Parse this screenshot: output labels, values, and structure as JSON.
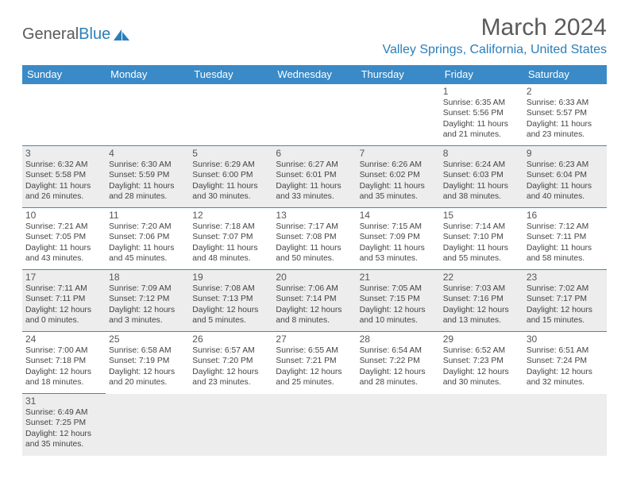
{
  "logo": {
    "text1": "General",
    "text2": "Blue"
  },
  "title": "March 2024",
  "location": "Valley Springs, California, United States",
  "weekday_headers": [
    "Sunday",
    "Monday",
    "Tuesday",
    "Wednesday",
    "Thursday",
    "Friday",
    "Saturday"
  ],
  "colors": {
    "header_bg": "#3a8ac7",
    "cell_shade": "#ededed",
    "accent": "#2a7fba"
  },
  "days": {
    "1": {
      "sunrise": "6:35 AM",
      "sunset": "5:56 PM",
      "daylight": "11 hours and 21 minutes."
    },
    "2": {
      "sunrise": "6:33 AM",
      "sunset": "5:57 PM",
      "daylight": "11 hours and 23 minutes."
    },
    "3": {
      "sunrise": "6:32 AM",
      "sunset": "5:58 PM",
      "daylight": "11 hours and 26 minutes."
    },
    "4": {
      "sunrise": "6:30 AM",
      "sunset": "5:59 PM",
      "daylight": "11 hours and 28 minutes."
    },
    "5": {
      "sunrise": "6:29 AM",
      "sunset": "6:00 PM",
      "daylight": "11 hours and 30 minutes."
    },
    "6": {
      "sunrise": "6:27 AM",
      "sunset": "6:01 PM",
      "daylight": "11 hours and 33 minutes."
    },
    "7": {
      "sunrise": "6:26 AM",
      "sunset": "6:02 PM",
      "daylight": "11 hours and 35 minutes."
    },
    "8": {
      "sunrise": "6:24 AM",
      "sunset": "6:03 PM",
      "daylight": "11 hours and 38 minutes."
    },
    "9": {
      "sunrise": "6:23 AM",
      "sunset": "6:04 PM",
      "daylight": "11 hours and 40 minutes."
    },
    "10": {
      "sunrise": "7:21 AM",
      "sunset": "7:05 PM",
      "daylight": "11 hours and 43 minutes."
    },
    "11": {
      "sunrise": "7:20 AM",
      "sunset": "7:06 PM",
      "daylight": "11 hours and 45 minutes."
    },
    "12": {
      "sunrise": "7:18 AM",
      "sunset": "7:07 PM",
      "daylight": "11 hours and 48 minutes."
    },
    "13": {
      "sunrise": "7:17 AM",
      "sunset": "7:08 PM",
      "daylight": "11 hours and 50 minutes."
    },
    "14": {
      "sunrise": "7:15 AM",
      "sunset": "7:09 PM",
      "daylight": "11 hours and 53 minutes."
    },
    "15": {
      "sunrise": "7:14 AM",
      "sunset": "7:10 PM",
      "daylight": "11 hours and 55 minutes."
    },
    "16": {
      "sunrise": "7:12 AM",
      "sunset": "7:11 PM",
      "daylight": "11 hours and 58 minutes."
    },
    "17": {
      "sunrise": "7:11 AM",
      "sunset": "7:11 PM",
      "daylight": "12 hours and 0 minutes."
    },
    "18": {
      "sunrise": "7:09 AM",
      "sunset": "7:12 PM",
      "daylight": "12 hours and 3 minutes."
    },
    "19": {
      "sunrise": "7:08 AM",
      "sunset": "7:13 PM",
      "daylight": "12 hours and 5 minutes."
    },
    "20": {
      "sunrise": "7:06 AM",
      "sunset": "7:14 PM",
      "daylight": "12 hours and 8 minutes."
    },
    "21": {
      "sunrise": "7:05 AM",
      "sunset": "7:15 PM",
      "daylight": "12 hours and 10 minutes."
    },
    "22": {
      "sunrise": "7:03 AM",
      "sunset": "7:16 PM",
      "daylight": "12 hours and 13 minutes."
    },
    "23": {
      "sunrise": "7:02 AM",
      "sunset": "7:17 PM",
      "daylight": "12 hours and 15 minutes."
    },
    "24": {
      "sunrise": "7:00 AM",
      "sunset": "7:18 PM",
      "daylight": "12 hours and 18 minutes."
    },
    "25": {
      "sunrise": "6:58 AM",
      "sunset": "7:19 PM",
      "daylight": "12 hours and 20 minutes."
    },
    "26": {
      "sunrise": "6:57 AM",
      "sunset": "7:20 PM",
      "daylight": "12 hours and 23 minutes."
    },
    "27": {
      "sunrise": "6:55 AM",
      "sunset": "7:21 PM",
      "daylight": "12 hours and 25 minutes."
    },
    "28": {
      "sunrise": "6:54 AM",
      "sunset": "7:22 PM",
      "daylight": "12 hours and 28 minutes."
    },
    "29": {
      "sunrise": "6:52 AM",
      "sunset": "7:23 PM",
      "daylight": "12 hours and 30 minutes."
    },
    "30": {
      "sunrise": "6:51 AM",
      "sunset": "7:24 PM",
      "daylight": "12 hours and 32 minutes."
    },
    "31": {
      "sunrise": "6:49 AM",
      "sunset": "7:25 PM",
      "daylight": "12 hours and 35 minutes."
    }
  },
  "layout": {
    "first_weekday_index": 5,
    "num_days": 31,
    "shaded_weeks": [
      1,
      3,
      5
    ]
  }
}
